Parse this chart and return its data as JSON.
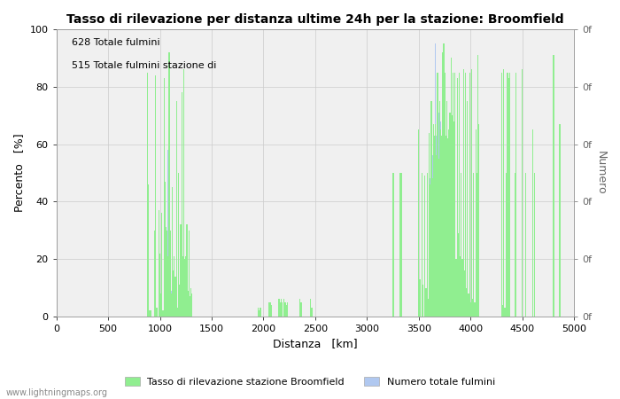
{
  "title": "Tasso di rilevazione per distanza ultime 24h per la stazione: Broomfield",
  "xlabel": "Distanza   [km]",
  "ylabel_left": "Percento   [%]",
  "ylabel_right": "Numero",
  "annotation_line1": "628 Totale fulmini",
  "annotation_line2": "515 Totale fulmini stazione di",
  "legend_label1": "Tasso di rilevazione stazione Broomfield",
  "legend_label2": "Numero totale fulmini",
  "watermark": "www.lightningmaps.org",
  "xlim": [
    0,
    5000
  ],
  "ylim": [
    0,
    100
  ],
  "xticks": [
    0,
    500,
    1000,
    1500,
    2000,
    2500,
    3000,
    3500,
    4000,
    4500,
    5000
  ],
  "yticks_left": [
    0,
    20,
    40,
    60,
    80,
    100
  ],
  "bar_color_green": "#90ee90",
  "bar_color_blue": "#b0c8f0",
  "bg_color": "#f0f0f0",
  "grid_color": "#cccccc",
  "bin_width": 10,
  "green_data": [
    [
      880,
      85
    ],
    [
      890,
      46
    ],
    [
      900,
      2
    ],
    [
      910,
      2
    ],
    [
      950,
      30
    ],
    [
      960,
      84
    ],
    [
      970,
      3
    ],
    [
      990,
      37
    ],
    [
      1000,
      22
    ],
    [
      1010,
      8
    ],
    [
      1020,
      36
    ],
    [
      1030,
      2
    ],
    [
      1040,
      83
    ],
    [
      1050,
      47
    ],
    [
      1060,
      31
    ],
    [
      1070,
      30
    ],
    [
      1080,
      21
    ],
    [
      1090,
      92
    ],
    [
      1100,
      30
    ],
    [
      1110,
      8
    ],
    [
      1120,
      45
    ],
    [
      1130,
      16
    ],
    [
      1140,
      21
    ],
    [
      1150,
      14
    ],
    [
      1160,
      75
    ],
    [
      1170,
      3
    ],
    [
      1180,
      50
    ],
    [
      1190,
      11
    ],
    [
      1200,
      32
    ],
    [
      1210,
      78
    ],
    [
      1220,
      21
    ],
    [
      1230,
      86
    ],
    [
      1240,
      20
    ],
    [
      1250,
      21
    ],
    [
      1260,
      32
    ],
    [
      1270,
      9
    ],
    [
      1280,
      30
    ],
    [
      1290,
      7
    ],
    [
      1300,
      10
    ],
    [
      1310,
      8
    ],
    [
      1950,
      3
    ],
    [
      1960,
      2
    ],
    [
      1970,
      3
    ],
    [
      2050,
      5
    ],
    [
      2060,
      5
    ],
    [
      2070,
      5
    ],
    [
      2080,
      4
    ],
    [
      2150,
      6
    ],
    [
      2160,
      5
    ],
    [
      2170,
      6
    ],
    [
      2180,
      5
    ],
    [
      2200,
      6
    ],
    [
      2210,
      5
    ],
    [
      2220,
      4
    ],
    [
      2230,
      5
    ],
    [
      2350,
      6
    ],
    [
      2360,
      5
    ],
    [
      2370,
      5
    ],
    [
      2450,
      6
    ],
    [
      2460,
      3
    ],
    [
      2470,
      3
    ],
    [
      3250,
      50
    ],
    [
      3260,
      50
    ],
    [
      3320,
      50
    ],
    [
      3330,
      50
    ],
    [
      3500,
      65
    ],
    [
      3510,
      13
    ],
    [
      3530,
      50
    ],
    [
      3540,
      11
    ],
    [
      3560,
      49
    ],
    [
      3570,
      10
    ],
    [
      3580,
      50
    ],
    [
      3590,
      6
    ],
    [
      3600,
      64
    ],
    [
      3610,
      46
    ],
    [
      3620,
      75
    ],
    [
      3630,
      48
    ],
    [
      3640,
      67
    ],
    [
      3650,
      63
    ],
    [
      3660,
      67
    ],
    [
      3670,
      56
    ],
    [
      3680,
      85
    ],
    [
      3690,
      55
    ],
    [
      3700,
      75
    ],
    [
      3710,
      65
    ],
    [
      3720,
      63
    ],
    [
      3730,
      92
    ],
    [
      3740,
      95
    ],
    [
      3750,
      85
    ],
    [
      3760,
      63
    ],
    [
      3770,
      75
    ],
    [
      3780,
      62
    ],
    [
      3790,
      65
    ],
    [
      3800,
      71
    ],
    [
      3810,
      90
    ],
    [
      3820,
      70
    ],
    [
      3830,
      85
    ],
    [
      3840,
      68
    ],
    [
      3850,
      85
    ],
    [
      3860,
      20
    ],
    [
      3870,
      83
    ],
    [
      3880,
      29
    ],
    [
      3890,
      85
    ],
    [
      3900,
      21
    ],
    [
      3910,
      50
    ],
    [
      3920,
      20
    ],
    [
      3930,
      86
    ],
    [
      3940,
      16
    ],
    [
      3950,
      85
    ],
    [
      3960,
      10
    ],
    [
      3970,
      75
    ],
    [
      3980,
      8
    ],
    [
      3990,
      85
    ],
    [
      4000,
      5
    ],
    [
      4010,
      86
    ],
    [
      4020,
      6
    ],
    [
      4030,
      50
    ],
    [
      4040,
      5
    ],
    [
      4050,
      65
    ],
    [
      4060,
      50
    ],
    [
      4070,
      91
    ],
    [
      4080,
      67
    ],
    [
      4300,
      85
    ],
    [
      4310,
      4
    ],
    [
      4320,
      86
    ],
    [
      4330,
      3
    ],
    [
      4340,
      50
    ],
    [
      4350,
      85
    ],
    [
      4360,
      85
    ],
    [
      4370,
      83
    ],
    [
      4380,
      85
    ],
    [
      4430,
      50
    ],
    [
      4440,
      85
    ],
    [
      4500,
      86
    ],
    [
      4530,
      50
    ],
    [
      4600,
      65
    ],
    [
      4620,
      50
    ],
    [
      4800,
      91
    ],
    [
      4860,
      67
    ]
  ],
  "blue_data": [
    [
      880,
      8
    ],
    [
      890,
      37
    ],
    [
      950,
      26
    ],
    [
      960,
      31
    ],
    [
      990,
      20
    ],
    [
      1000,
      14
    ],
    [
      1020,
      32
    ],
    [
      1030,
      2
    ],
    [
      1040,
      21
    ],
    [
      1050,
      11
    ],
    [
      1060,
      21
    ],
    [
      1070,
      9
    ],
    [
      1080,
      58
    ],
    [
      1090,
      20
    ],
    [
      1100,
      21
    ],
    [
      1110,
      9
    ],
    [
      1120,
      7
    ],
    [
      1130,
      5
    ],
    [
      1160,
      3
    ],
    [
      1170,
      2
    ],
    [
      1180,
      4
    ],
    [
      1190,
      3
    ],
    [
      1200,
      5
    ],
    [
      1210,
      5
    ],
    [
      1220,
      2
    ],
    [
      1230,
      2
    ],
    [
      1950,
      3
    ],
    [
      1960,
      2
    ],
    [
      2050,
      4
    ],
    [
      2060,
      3
    ],
    [
      2150,
      5
    ],
    [
      2160,
      4
    ],
    [
      2200,
      4
    ],
    [
      2210,
      3
    ],
    [
      2350,
      5
    ],
    [
      2360,
      4
    ],
    [
      2450,
      5
    ],
    [
      2460,
      2
    ],
    [
      3250,
      6
    ],
    [
      3260,
      5
    ],
    [
      3320,
      6
    ],
    [
      3330,
      5
    ],
    [
      3500,
      13
    ],
    [
      3510,
      11
    ],
    [
      3530,
      10
    ],
    [
      3540,
      11
    ],
    [
      3560,
      12
    ],
    [
      3570,
      10
    ],
    [
      3580,
      13
    ],
    [
      3590,
      6
    ],
    [
      3600,
      46
    ],
    [
      3610,
      48
    ],
    [
      3620,
      63
    ],
    [
      3630,
      56
    ],
    [
      3640,
      55
    ],
    [
      3650,
      63
    ],
    [
      3660,
      95
    ],
    [
      3670,
      63
    ],
    [
      3680,
      62
    ],
    [
      3690,
      71
    ],
    [
      3700,
      70
    ],
    [
      3710,
      68
    ],
    [
      3720,
      20
    ],
    [
      3730,
      29
    ],
    [
      3740,
      21
    ],
    [
      3750,
      20
    ],
    [
      3760,
      16
    ],
    [
      3770,
      10
    ],
    [
      3780,
      8
    ],
    [
      3790,
      5
    ],
    [
      3800,
      6
    ],
    [
      3810,
      5
    ],
    [
      3820,
      4
    ],
    [
      3830,
      3
    ],
    [
      3840,
      2
    ],
    [
      3850,
      2
    ],
    [
      3860,
      1
    ],
    [
      3870,
      2
    ],
    [
      3880,
      1
    ],
    [
      3890,
      2
    ],
    [
      3900,
      1
    ],
    [
      3910,
      3
    ],
    [
      3920,
      2
    ],
    [
      3930,
      2
    ],
    [
      3940,
      1
    ],
    [
      3950,
      2
    ],
    [
      3960,
      1
    ],
    [
      3970,
      1
    ],
    [
      3980,
      1
    ],
    [
      3990,
      2
    ],
    [
      4000,
      1
    ],
    [
      4300,
      4
    ],
    [
      4310,
      3
    ],
    [
      4320,
      3
    ],
    [
      4330,
      2
    ],
    [
      4340,
      2
    ],
    [
      4350,
      2
    ],
    [
      4360,
      2
    ],
    [
      4370,
      2
    ],
    [
      4380,
      1
    ],
    [
      4430,
      1
    ],
    [
      4440,
      1
    ],
    [
      4500,
      1
    ],
    [
      4800,
      1
    ],
    [
      4860,
      1
    ]
  ]
}
